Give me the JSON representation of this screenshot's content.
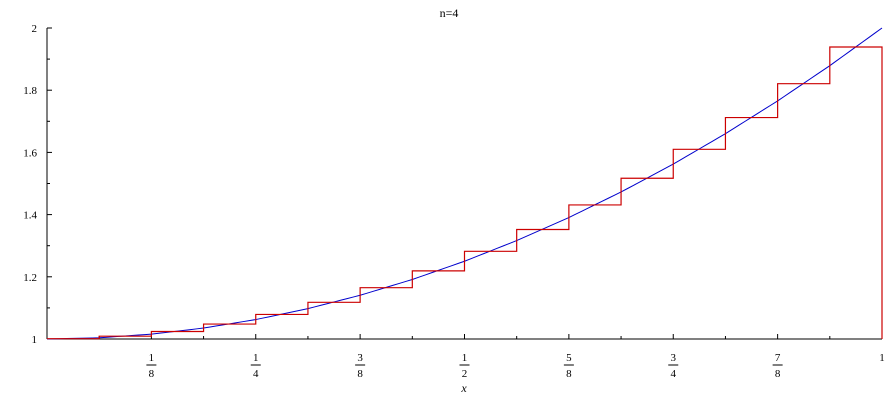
{
  "chart_data": {
    "type": "line",
    "title": "n=4",
    "xlabel": "x",
    "ylabel": "",
    "xlim": [
      0,
      1
    ],
    "ylim": [
      1,
      2
    ],
    "grid": false,
    "x_ticks": [
      {
        "value": 0.125,
        "num": "1",
        "den": "8"
      },
      {
        "value": 0.25,
        "num": "1",
        "den": "4"
      },
      {
        "value": 0.375,
        "num": "3",
        "den": "8"
      },
      {
        "value": 0.5,
        "num": "1",
        "den": "2"
      },
      {
        "value": 0.625,
        "num": "5",
        "den": "8"
      },
      {
        "value": 0.75,
        "num": "3",
        "den": "4"
      },
      {
        "value": 0.875,
        "num": "7",
        "den": "8"
      },
      {
        "value": 1,
        "num": "1",
        "den": ""
      }
    ],
    "y_ticks": [
      {
        "value": 1,
        "label": "1"
      },
      {
        "value": 1.2,
        "label": "1.2"
      },
      {
        "value": 1.4,
        "label": "1.4"
      },
      {
        "value": 1.6,
        "label": "1.6"
      },
      {
        "value": 1.8,
        "label": "1.8"
      },
      {
        "value": 2,
        "label": "2"
      }
    ],
    "series": [
      {
        "kind": "curve",
        "color": "#0000cc",
        "x": [
          0,
          0.0625,
          0.125,
          0.1875,
          0.25,
          0.3125,
          0.375,
          0.4375,
          0.5,
          0.5625,
          0.625,
          0.6875,
          0.75,
          0.8125,
          0.875,
          0.9375,
          1
        ],
        "y": [
          1,
          1.0039,
          1.0156,
          1.0352,
          1.0625,
          1.0977,
          1.1406,
          1.1914,
          1.25,
          1.3164,
          1.3906,
          1.4727,
          1.5625,
          1.6602,
          1.7656,
          1.8789,
          2
        ]
      },
      {
        "kind": "step",
        "color": "#cc0000",
        "x_edges": [
          0,
          0.0625,
          0.125,
          0.1875,
          0.25,
          0.3125,
          0.375,
          0.4375,
          0.5,
          0.5625,
          0.625,
          0.6875,
          0.75,
          0.8125,
          0.875,
          0.9375,
          1
        ],
        "heights": [
          1.001,
          1.009,
          1.024,
          1.048,
          1.079,
          1.118,
          1.165,
          1.219,
          1.282,
          1.352,
          1.431,
          1.517,
          1.61,
          1.712,
          1.821,
          1.939
        ]
      }
    ]
  }
}
